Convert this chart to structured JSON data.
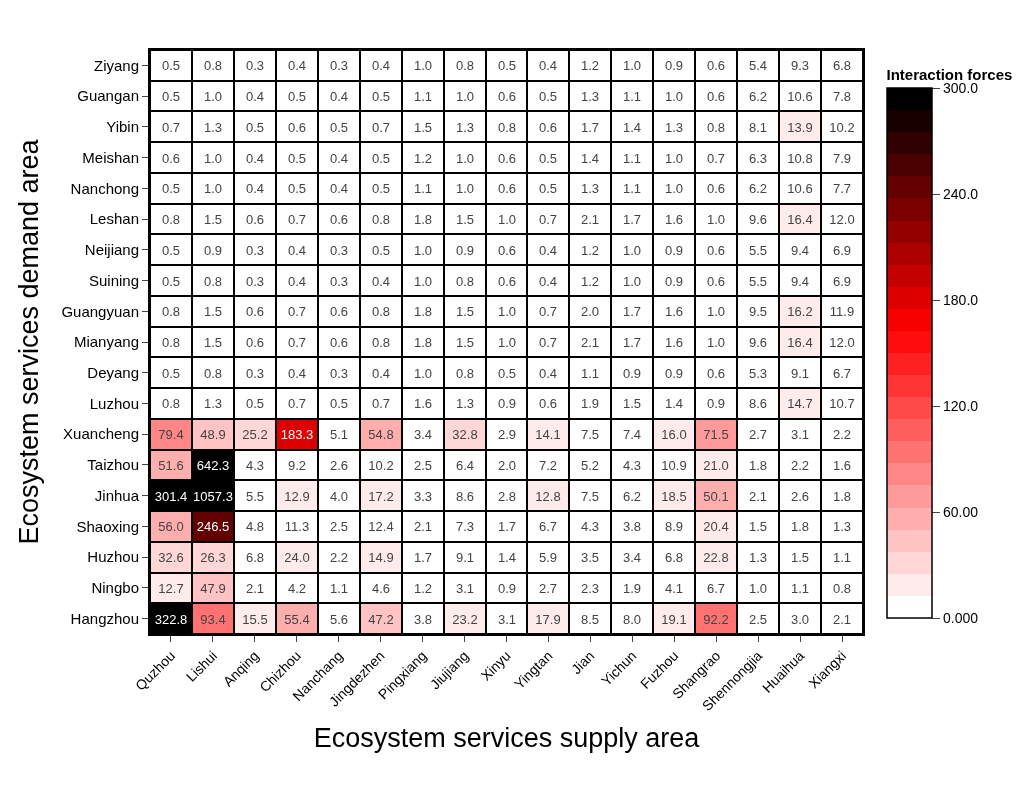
{
  "chart_data": {
    "type": "heatmap",
    "xlabel": "Ecosystem services supply area",
    "ylabel": "Ecosystem services demand area",
    "clabel": "Interaction forces",
    "categories": [
      "Quzhou",
      "Lishui",
      "Anqing",
      "Chizhou",
      "Nanchang",
      "Jingdezhen",
      "Pingxiang",
      "Jiujiang",
      "Xinyu",
      "Yingtan",
      "Jian",
      "Yichun",
      "Fuzhou",
      "Shangrao",
      "Shennongjia",
      "Huaihua",
      "Xiangxi"
    ],
    "y_categories": [
      "Ziyang",
      "Guangan",
      "Yibin",
      "Meishan",
      "Nanchong",
      "Leshan",
      "Neijiang",
      "Suining",
      "Guangyuan",
      "Mianyang",
      "Deyang",
      "Luzhou",
      "Xuancheng",
      "Taizhou",
      "Jinhua",
      "Shaoxing",
      "Huzhou",
      "Ningbo",
      "Hangzhou"
    ],
    "cells": [
      [
        0.5,
        0.8,
        0.3,
        0.4,
        0.3,
        0.4,
        1.0,
        0.8,
        0.5,
        0.4,
        1.2,
        1.0,
        0.9,
        0.6,
        5.4,
        9.3,
        6.8
      ],
      [
        0.5,
        1.0,
        0.4,
        0.5,
        0.4,
        0.5,
        1.1,
        1.0,
        0.6,
        0.5,
        1.3,
        1.1,
        1.0,
        0.6,
        6.2,
        10.6,
        7.8
      ],
      [
        0.7,
        1.3,
        0.5,
        0.6,
        0.5,
        0.7,
        1.5,
        1.3,
        0.8,
        0.6,
        1.7,
        1.4,
        1.3,
        0.8,
        8.1,
        13.9,
        10.2
      ],
      [
        0.6,
        1.0,
        0.4,
        0.5,
        0.4,
        0.5,
        1.2,
        1.0,
        0.6,
        0.5,
        1.4,
        1.1,
        1.0,
        0.7,
        6.3,
        10.8,
        7.9
      ],
      [
        0.5,
        1.0,
        0.4,
        0.5,
        0.4,
        0.5,
        1.1,
        1.0,
        0.6,
        0.5,
        1.3,
        1.1,
        1.0,
        0.6,
        6.2,
        10.6,
        7.7
      ],
      [
        0.8,
        1.5,
        0.6,
        0.7,
        0.6,
        0.8,
        1.8,
        1.5,
        1.0,
        0.7,
        2.1,
        1.7,
        1.6,
        1.0,
        9.6,
        16.4,
        12.0
      ],
      [
        0.5,
        0.9,
        0.3,
        0.4,
        0.3,
        0.5,
        1.0,
        0.9,
        0.6,
        0.4,
        1.2,
        1.0,
        0.9,
        0.6,
        5.5,
        9.4,
        6.9
      ],
      [
        0.5,
        0.8,
        0.3,
        0.4,
        0.3,
        0.4,
        1.0,
        0.8,
        0.6,
        0.4,
        1.2,
        1.0,
        0.9,
        0.6,
        5.5,
        9.4,
        6.9
      ],
      [
        0.8,
        1.5,
        0.6,
        0.7,
        0.6,
        0.8,
        1.8,
        1.5,
        1.0,
        0.7,
        2.0,
        1.7,
        1.6,
        1.0,
        9.5,
        16.2,
        11.9
      ],
      [
        0.8,
        1.5,
        0.6,
        0.7,
        0.6,
        0.8,
        1.8,
        1.5,
        1.0,
        0.7,
        2.1,
        1.7,
        1.6,
        1.0,
        9.6,
        16.4,
        12.0
      ],
      [
        0.5,
        0.8,
        0.3,
        0.4,
        0.3,
        0.4,
        1.0,
        0.8,
        0.5,
        0.4,
        1.1,
        0.9,
        0.9,
        0.6,
        5.3,
        9.1,
        6.7
      ],
      [
        0.8,
        1.3,
        0.5,
        0.7,
        0.5,
        0.7,
        1.6,
        1.3,
        0.9,
        0.6,
        1.9,
        1.5,
        1.4,
        0.9,
        8.6,
        14.7,
        10.7
      ],
      [
        79.4,
        48.9,
        25.2,
        183.3,
        5.1,
        54.8,
        3.4,
        32.8,
        2.9,
        14.1,
        7.5,
        7.4,
        16.0,
        71.5,
        2.7,
        3.1,
        2.2
      ],
      [
        51.6,
        642.3,
        4.3,
        9.2,
        2.6,
        10.2,
        2.5,
        6.4,
        2.0,
        7.2,
        5.2,
        4.3,
        10.9,
        21.0,
        1.8,
        2.2,
        1.6
      ],
      [
        301.4,
        1057.3,
        5.5,
        12.9,
        4.0,
        17.2,
        3.3,
        8.6,
        2.8,
        12.8,
        7.5,
        6.2,
        18.5,
        50.1,
        2.1,
        2.6,
        1.8
      ],
      [
        56.0,
        246.5,
        4.8,
        11.3,
        2.5,
        12.4,
        2.1,
        7.3,
        1.7,
        6.7,
        4.3,
        3.8,
        8.9,
        20.4,
        1.5,
        1.8,
        1.3
      ],
      [
        32.6,
        26.3,
        6.8,
        24.0,
        2.2,
        14.9,
        1.7,
        9.1,
        1.4,
        5.9,
        3.5,
        3.4,
        6.8,
        22.8,
        1.3,
        1.5,
        1.1
      ],
      [
        12.7,
        47.9,
        2.1,
        4.2,
        1.1,
        4.6,
        1.2,
        3.1,
        0.9,
        2.7,
        2.3,
        1.9,
        4.1,
        6.7,
        1.0,
        1.1,
        0.8
      ],
      [
        322.8,
        93.4,
        15.5,
        55.4,
        5.6,
        47.2,
        3.8,
        23.2,
        3.1,
        17.9,
        8.5,
        8.0,
        19.1,
        92.2,
        2.5,
        3.0,
        2.1
      ]
    ],
    "cell_labels": [
      [
        "0.5",
        "0.8",
        "0.3",
        "0.4",
        "0.3",
        "0.4",
        "1.0",
        "0.8",
        "0.5",
        "0.4",
        "1.2",
        "1.0",
        "0.9",
        "0.6",
        "5.4",
        "9.3",
        "6.8"
      ],
      [
        "0.5",
        "1.0",
        "0.4",
        "0.5",
        "0.4",
        "0.5",
        "1.1",
        "1.0",
        "0.6",
        "0.5",
        "1.3",
        "1.1",
        "1.0",
        "0.6",
        "6.2",
        "10.6",
        "7.8"
      ],
      [
        "0.7",
        "1.3",
        "0.5",
        "0.6",
        "0.5",
        "0.7",
        "1.5",
        "1.3",
        "0.8",
        "0.6",
        "1.7",
        "1.4",
        "1.3",
        "0.8",
        "8.1",
        "13.9",
        "10.2"
      ],
      [
        "0.6",
        "1.0",
        "0.4",
        "0.5",
        "0.4",
        "0.5",
        "1.2",
        "1.0",
        "0.6",
        "0.5",
        "1.4",
        "1.1",
        "1.0",
        "0.7",
        "6.3",
        "10.8",
        "7.9"
      ],
      [
        "0.5",
        "1.0",
        "0.4",
        "0.5",
        "0.4",
        "0.5",
        "1.1",
        "1.0",
        "0.6",
        "0.5",
        "1.3",
        "1.1",
        "1.0",
        "0.6",
        "6.2",
        "10.6",
        "7.7"
      ],
      [
        "0.8",
        "1.5",
        "0.6",
        "0.7",
        "0.6",
        "0.8",
        "1.8",
        "1.5",
        "1.0",
        "0.7",
        "2.1",
        "1.7",
        "1.6",
        "1.0",
        "9.6",
        "16.4",
        "12.0"
      ],
      [
        "0.5",
        "0.9",
        "0.3",
        "0.4",
        "0.3",
        "0.5",
        "1.0",
        "0.9",
        "0.6",
        "0.4",
        "1.2",
        "1.0",
        "0.9",
        "0.6",
        "5.5",
        "9.4",
        "6.9"
      ],
      [
        "0.5",
        "0.8",
        "0.3",
        "0.4",
        "0.3",
        "0.4",
        "1.0",
        "0.8",
        "0.6",
        "0.4",
        "1.2",
        "1.0",
        "0.9",
        "0.6",
        "5.5",
        "9.4",
        "6.9"
      ],
      [
        "0.8",
        "1.5",
        "0.6",
        "0.7",
        "0.6",
        "0.8",
        "1.8",
        "1.5",
        "1.0",
        "0.7",
        "2.0",
        "1.7",
        "1.6",
        "1.0",
        "9.5",
        "16.2",
        "11.9"
      ],
      [
        "0.8",
        "1.5",
        "0.6",
        "0.7",
        "0.6",
        "0.8",
        "1.8",
        "1.5",
        "1.0",
        "0.7",
        "2.1",
        "1.7",
        "1.6",
        "1.0",
        "9.6",
        "16.4",
        "12.0"
      ],
      [
        "0.5",
        "0.8",
        "0.3",
        "0.4",
        "0.3",
        "0.4",
        "1.0",
        "0.8",
        "0.5",
        "0.4",
        "1.1",
        "0.9",
        "0.9",
        "0.6",
        "5.3",
        "9.1",
        "6.7"
      ],
      [
        "0.8",
        "1.3",
        "0.5",
        "0.7",
        "0.5",
        "0.7",
        "1.6",
        "1.3",
        "0.9",
        "0.6",
        "1.9",
        "1.5",
        "1.4",
        "0.9",
        "8.6",
        "14.7",
        "10.7"
      ],
      [
        "79.4",
        "48.9",
        "25.2",
        "183.3",
        "5.1",
        "54.8",
        "3.4",
        "32.8",
        "2.9",
        "14.1",
        "7.5",
        "7.4",
        "16.0",
        "71.5",
        "2.7",
        "3.1",
        "2.2"
      ],
      [
        "51.6",
        "642.3",
        "4.3",
        "9.2",
        "2.6",
        "10.2",
        "2.5",
        "6.4",
        "2.0",
        "7.2",
        "5.2",
        "4.3",
        "10.9",
        "21.0",
        "1.8",
        "2.2",
        "1.6"
      ],
      [
        "301.4",
        "1057.3",
        "5.5",
        "12.9",
        "4.0",
        "17.2",
        "3.3",
        "8.6",
        "2.8",
        "12.8",
        "7.5",
        "6.2",
        "18.5",
        "50.1",
        "2.1",
        "2.6",
        "1.8"
      ],
      [
        "56.0",
        "246.5",
        "4.8",
        "11.3",
        "2.5",
        "12.4",
        "2.1",
        "7.3",
        "1.7",
        "6.7",
        "4.3",
        "3.8",
        "8.9",
        "20.4",
        "1.5",
        "1.8",
        "1.3"
      ],
      [
        "32.6",
        "26.3",
        "6.8",
        "24.0",
        "2.2",
        "14.9",
        "1.7",
        "9.1",
        "1.4",
        "5.9",
        "3.5",
        "3.4",
        "6.8",
        "22.8",
        "1.3",
        "1.5",
        "1.1"
      ],
      [
        "12.7",
        "47.9",
        "2.1",
        "4.2",
        "1.1",
        "4.6",
        "1.2",
        "3.1",
        "0.9",
        "2.7",
        "2.3",
        "1.9",
        "4.1",
        "6.7",
        "1.0",
        "1.1",
        "0.8"
      ],
      [
        "322.8",
        "93.4",
        "15.5",
        "55.4",
        "5.6",
        "47.2",
        "3.8",
        "23.2",
        "3.1",
        "17.9",
        "8.5",
        "8.0",
        "19.1",
        "92.2",
        "2.5",
        "3.0",
        "2.1"
      ]
    ],
    "clim": [
      0,
      300
    ],
    "cticks": [
      {
        "value": 0,
        "label": "0.000"
      },
      {
        "value": 60,
        "label": "60.00"
      },
      {
        "value": 120,
        "label": "120.0"
      },
      {
        "value": 180,
        "label": "180.0"
      },
      {
        "value": 240,
        "label": "240.0"
      },
      {
        "value": 300,
        "label": "300.0"
      }
    ]
  }
}
